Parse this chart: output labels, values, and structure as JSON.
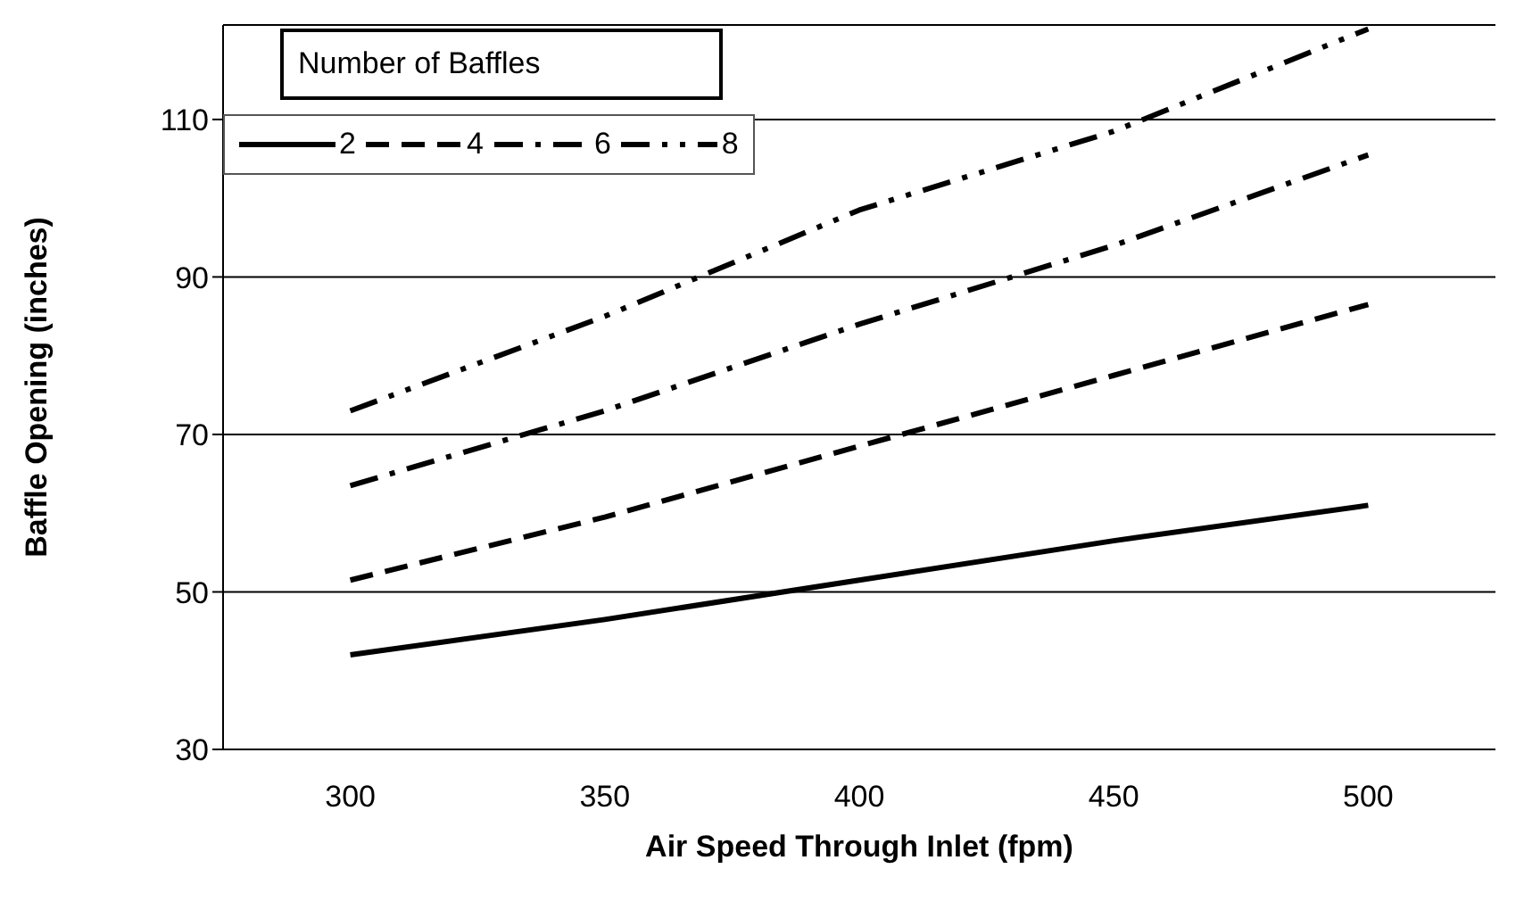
{
  "chart_data": {
    "type": "line",
    "xlabel": "Air Speed Through Inlet (fpm)",
    "ylabel": "Baffle Opening (inches)",
    "legend_title": "Number of Baffles",
    "categories": [
      "300",
      "350",
      "400",
      "450",
      "500"
    ],
    "series": [
      {
        "name": "2",
        "color": "#000000",
        "line_style": "solid",
        "values": [
          42,
          46.5,
          51.5,
          56.5,
          61
        ]
      },
      {
        "name": "4",
        "color": "#000000",
        "line_style": "dashed",
        "values": [
          51.5,
          59.5,
          68.5,
          77.5,
          86.5
        ]
      },
      {
        "name": "6",
        "color": "#000000",
        "line_style": "dashdot",
        "values": [
          63.5,
          73,
          84,
          94,
          105.5
        ]
      },
      {
        "name": "8",
        "color": "#000000",
        "line_style": "dashdotdot",
        "values": [
          73,
          85,
          98.5,
          108.5,
          121.5
        ]
      }
    ],
    "ylim": [
      30,
      122
    ],
    "yticks": [
      30,
      50,
      70,
      90,
      110
    ],
    "grid": "y",
    "legend": "top left",
    "marker": "none"
  }
}
